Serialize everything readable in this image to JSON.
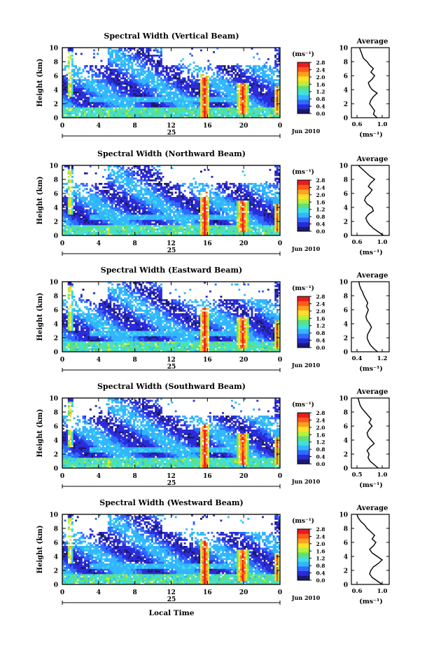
{
  "x_axis_label": "Local Time",
  "date_label": "Jun 2010",
  "day_label": "25",
  "colorbar": {
    "unit": "(ms⁻¹)",
    "ticks": [
      "0.0",
      "0.4",
      "0.8",
      "1.2",
      "1.6",
      "2.0",
      "2.4",
      "2.8"
    ],
    "colors": [
      "#1a1a6e",
      "#2b2bd9",
      "#2f6bff",
      "#33b5ff",
      "#3fe0e0",
      "#5fe07a",
      "#b8f03a",
      "#ffe02a",
      "#ffa020",
      "#ff5a1a",
      "#e81c1c"
    ]
  },
  "average_panel": {
    "title": "Average",
    "xlabel": "(ms⁻¹)"
  },
  "chart_data": [
    {
      "type": "heatmap",
      "title": "Spectral Width (Vertical Beam)",
      "ylabel": "Height (km)",
      "xlim": [
        0,
        24
      ],
      "ylim": [
        0,
        10
      ],
      "x_ticks": [
        "0",
        "4",
        "8",
        "12",
        "16",
        "20",
        "0"
      ],
      "y_ticks": [
        "0",
        "2",
        "4",
        "6",
        "8",
        "10"
      ],
      "colorbar_range": [
        0.0,
        2.8
      ],
      "average_profile": {
        "xlim": [
          0.6,
          1.2
        ],
        "x_ticks": [
          "0.6",
          "1.0"
        ],
        "y_ticks": [
          "0",
          "2",
          "4",
          "6",
          "8",
          "10"
        ],
        "height": [
          0,
          0.5,
          1,
          1.5,
          2,
          2.5,
          3,
          3.5,
          4,
          4.5,
          5,
          5.5,
          6,
          6.5,
          7,
          7.5,
          8,
          8.5,
          9,
          9.5,
          10
        ],
        "value": [
          0.92,
          0.86,
          0.88,
          0.84,
          0.8,
          0.82,
          0.86,
          0.92,
          0.84,
          0.8,
          0.78,
          0.84,
          0.88,
          0.82,
          0.86,
          0.8,
          0.76,
          0.7,
          0.68,
          0.66,
          0.64
        ]
      }
    },
    {
      "type": "heatmap",
      "title": "Spectral Width (Northward Beam)",
      "ylabel": "Height (km)",
      "xlim": [
        0,
        24
      ],
      "ylim": [
        0,
        10
      ],
      "x_ticks": [
        "0",
        "4",
        "8",
        "12",
        "16",
        "20",
        "0"
      ],
      "y_ticks": [
        "0",
        "2",
        "4",
        "6",
        "8",
        "10"
      ],
      "colorbar_range": [
        0.0,
        2.8
      ],
      "average_profile": {
        "xlim": [
          0.6,
          1.2
        ],
        "x_ticks": [
          "0.6",
          "1.0"
        ],
        "y_ticks": [
          "0",
          "2",
          "4",
          "6",
          "8",
          "10"
        ],
        "height": [
          0,
          0.5,
          1,
          1.5,
          2,
          2.5,
          3,
          3.5,
          4,
          4.5,
          5,
          5.5,
          6,
          6.5,
          7,
          7.5,
          8,
          8.5,
          9,
          9.5,
          10
        ],
        "value": [
          1.02,
          0.94,
          0.86,
          0.8,
          0.76,
          0.74,
          0.78,
          0.86,
          0.84,
          0.76,
          0.72,
          0.74,
          0.8,
          0.84,
          0.78,
          0.82,
          0.88,
          0.8,
          0.74,
          0.68,
          0.62
        ]
      }
    },
    {
      "type": "heatmap",
      "title": "Spectral Width (Eastward Beam)",
      "ylabel": "Height (km)",
      "xlim": [
        0,
        24
      ],
      "ylim": [
        0,
        10
      ],
      "x_ticks": [
        "0",
        "4",
        "8",
        "12",
        "16",
        "20",
        "0"
      ],
      "y_ticks": [
        "0",
        "2",
        "4",
        "6",
        "8",
        "10"
      ],
      "colorbar_range": [
        0.0,
        2.8
      ],
      "average_profile": {
        "xlim": [
          0.4,
          1.2
        ],
        "x_ticks": [
          "0.4",
          "1.2"
        ],
        "y_ticks": [
          "0",
          "2",
          "4",
          "6",
          "8",
          "10"
        ],
        "height": [
          0,
          0.5,
          1,
          1.5,
          2,
          2.5,
          3,
          3.5,
          4,
          4.5,
          5,
          5.5,
          6,
          6.5,
          7,
          7.5,
          8,
          8.5,
          9,
          9.5,
          10
        ],
        "value": [
          1.05,
          0.92,
          0.82,
          0.76,
          0.72,
          0.74,
          0.8,
          0.86,
          0.8,
          0.72,
          0.68,
          0.72,
          0.76,
          0.7,
          0.74,
          0.68,
          0.62,
          0.58,
          0.52,
          0.48,
          0.46
        ]
      }
    },
    {
      "type": "heatmap",
      "title": "Spectral Width (Southward Beam)",
      "ylabel": "Height (km)",
      "xlim": [
        0,
        24
      ],
      "ylim": [
        0,
        10
      ],
      "x_ticks": [
        "0",
        "4",
        "8",
        "12",
        "16",
        "20",
        "0"
      ],
      "y_ticks": [
        "0",
        "2",
        "4",
        "6",
        "8",
        "10"
      ],
      "colorbar_range": [
        0.0,
        2.8
      ],
      "average_profile": {
        "xlim": [
          0.5,
          1.2
        ],
        "x_ticks": [
          "0.5",
          "1.0"
        ],
        "y_ticks": [
          "0",
          "2",
          "4",
          "6",
          "8",
          "10"
        ],
        "height": [
          0,
          0.5,
          1,
          1.5,
          2,
          2.5,
          3,
          3.5,
          4,
          4.5,
          5,
          5.5,
          6,
          6.5,
          7,
          7.5,
          8,
          8.5,
          9,
          9.5,
          10
        ],
        "value": [
          0.92,
          0.84,
          0.76,
          0.72,
          0.74,
          0.7,
          0.76,
          0.84,
          0.78,
          0.72,
          0.7,
          0.74,
          0.8,
          0.74,
          0.78,
          0.72,
          0.66,
          0.6,
          0.56,
          0.54,
          0.52
        ]
      }
    },
    {
      "type": "heatmap",
      "title": "Spectral Width (Westward Beam)",
      "ylabel": "Height (km)",
      "xlim": [
        0,
        24
      ],
      "ylim": [
        0,
        10
      ],
      "x_ticks": [
        "0",
        "4",
        "8",
        "12",
        "16",
        "20",
        "0"
      ],
      "y_ticks": [
        "0",
        "2",
        "4",
        "6",
        "8",
        "10"
      ],
      "colorbar_range": [
        0.0,
        2.8
      ],
      "average_profile": {
        "xlim": [
          0.6,
          1.2
        ],
        "x_ticks": [
          "0.6",
          "1.0"
        ],
        "y_ticks": [
          "0",
          "2",
          "4",
          "6",
          "8",
          "10"
        ],
        "height": [
          0,
          0.5,
          1,
          1.5,
          2,
          2.5,
          3,
          3.5,
          4,
          4.5,
          5,
          5.5,
          6,
          6.5,
          7,
          7.5,
          8,
          8.5,
          9,
          9.5,
          10
        ],
        "value": [
          1.0,
          0.92,
          0.84,
          0.8,
          0.82,
          0.86,
          0.94,
          1.0,
          0.92,
          0.84,
          0.8,
          0.86,
          0.9,
          0.84,
          0.88,
          0.82,
          0.76,
          0.72,
          0.66,
          0.62,
          0.6
        ]
      }
    }
  ]
}
